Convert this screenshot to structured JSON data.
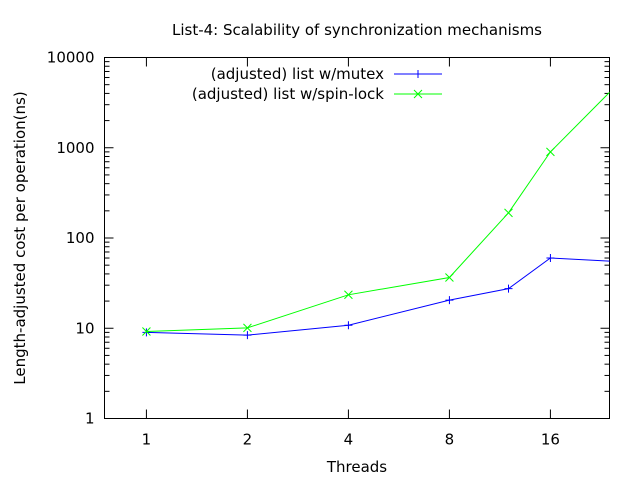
{
  "chart_data": {
    "type": "line",
    "title": "List-4: Scalability of synchronization mechanisms",
    "xlabel": "Threads",
    "ylabel": "Length-adjusted cost per operation(ns)",
    "x_scale": "log2",
    "y_scale": "log10",
    "xlim": [
      0.75,
      24
    ],
    "ylim": [
      1,
      10000
    ],
    "x_ticks": [
      1,
      2,
      4,
      8,
      16
    ],
    "x_tick_labels": [
      "1",
      "2",
      "4",
      "8",
      "16"
    ],
    "y_ticks": [
      1,
      10,
      100,
      1000,
      10000
    ],
    "y_tick_labels": [
      "1",
      "10",
      "100",
      "1000",
      "10000"
    ],
    "legend_position": "top-center",
    "grid": false,
    "series": [
      {
        "name": "(adjusted) list w/mutex",
        "color": "#0000ff",
        "marker": "plus",
        "points": [
          [
            1,
            9
          ],
          [
            2,
            8.4
          ],
          [
            4,
            10.8
          ],
          [
            8,
            20.5
          ],
          [
            12,
            27.5
          ],
          [
            16,
            60
          ],
          [
            24,
            55.5
          ]
        ]
      },
      {
        "name": "(adjusted) list w/spin-lock",
        "color": "#00ff00",
        "marker": "cross",
        "points": [
          [
            1,
            9.2
          ],
          [
            2,
            10.1
          ],
          [
            4,
            23.5
          ],
          [
            8,
            36.5
          ],
          [
            12,
            190
          ],
          [
            16,
            900
          ],
          [
            24,
            4100
          ]
        ]
      }
    ]
  }
}
